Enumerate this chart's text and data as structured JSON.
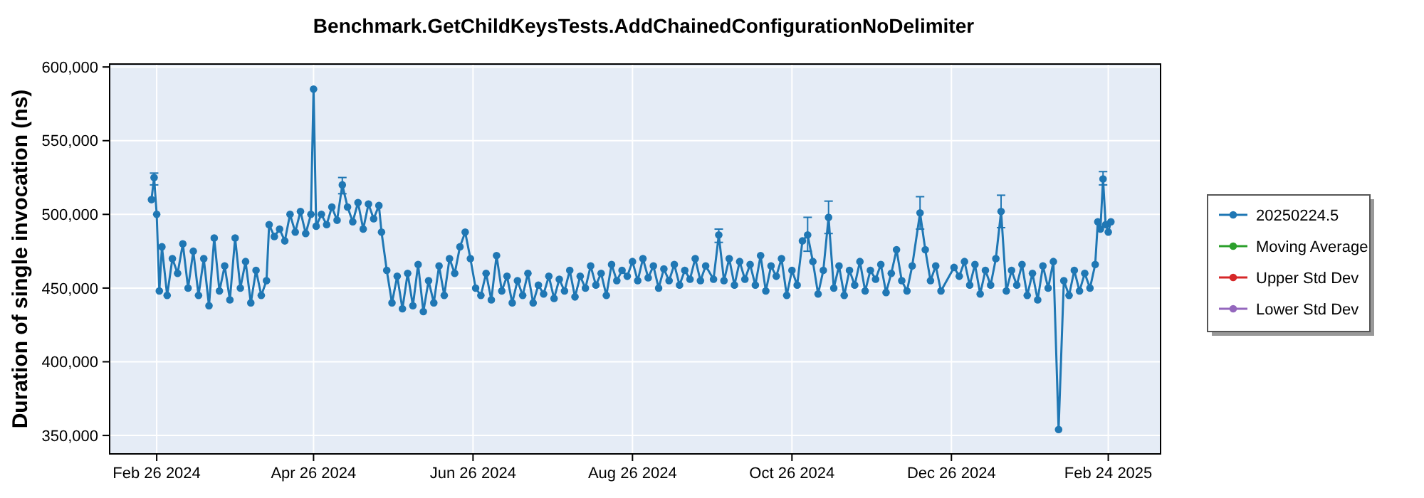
{
  "chart_data": {
    "type": "line",
    "title": "Benchmark.GetChildKeysTests.AddChainedConfigurationNoDelimiter",
    "ylabel": "Duration of single invocation (ns)",
    "xlim": [
      "2024-02-08",
      "2025-03-16"
    ],
    "ylim": [
      337500,
      602000
    ],
    "xticks": [
      {
        "value": "2024-02-26",
        "label": "Feb 26 2024"
      },
      {
        "value": "2024-04-26",
        "label": "Apr 26 2024"
      },
      {
        "value": "2024-06-26",
        "label": "Jun 26 2024"
      },
      {
        "value": "2024-08-26",
        "label": "Aug 26 2024"
      },
      {
        "value": "2024-10-26",
        "label": "Oct 26 2024"
      },
      {
        "value": "2024-12-26",
        "label": "Dec 26 2024"
      },
      {
        "value": "2025-02-24",
        "label": "Feb 24 2025"
      }
    ],
    "yticks": [
      {
        "value": 350000,
        "label": "350,000"
      },
      {
        "value": 400000,
        "label": "400,000"
      },
      {
        "value": 450000,
        "label": "450,000"
      },
      {
        "value": 500000,
        "label": "500,000"
      },
      {
        "value": 550000,
        "label": "550,000"
      },
      {
        "value": 600000,
        "label": "600,000"
      }
    ],
    "grid": true,
    "legend": "right",
    "marker": "circle",
    "line_style": "solid",
    "series": [
      {
        "name": "20250224.5",
        "color": "#1f77b4",
        "x": [
          "2024-02-24",
          "2024-02-25",
          "2024-02-26",
          "2024-02-27",
          "2024-02-28",
          "2024-03-01",
          "2024-03-03",
          "2024-03-05",
          "2024-03-07",
          "2024-03-09",
          "2024-03-11",
          "2024-03-13",
          "2024-03-15",
          "2024-03-17",
          "2024-03-19",
          "2024-03-21",
          "2024-03-23",
          "2024-03-25",
          "2024-03-27",
          "2024-03-29",
          "2024-03-31",
          "2024-04-02",
          "2024-04-04",
          "2024-04-06",
          "2024-04-08",
          "2024-04-09",
          "2024-04-11",
          "2024-04-13",
          "2024-04-15",
          "2024-04-17",
          "2024-04-19",
          "2024-04-21",
          "2024-04-23",
          "2024-04-25",
          "2024-04-26",
          "2024-04-27",
          "2024-04-29",
          "2024-05-01",
          "2024-05-03",
          "2024-05-05",
          "2024-05-07",
          "2024-05-09",
          "2024-05-11",
          "2024-05-13",
          "2024-05-15",
          "2024-05-17",
          "2024-05-19",
          "2024-05-21",
          "2024-05-22",
          "2024-05-24",
          "2024-05-26",
          "2024-05-28",
          "2024-05-30",
          "2024-06-01",
          "2024-06-03",
          "2024-06-05",
          "2024-06-07",
          "2024-06-09",
          "2024-06-11",
          "2024-06-13",
          "2024-06-15",
          "2024-06-17",
          "2024-06-19",
          "2024-06-21",
          "2024-06-23",
          "2024-06-25",
          "2024-06-27",
          "2024-06-29",
          "2024-07-01",
          "2024-07-03",
          "2024-07-05",
          "2024-07-07",
          "2024-07-09",
          "2024-07-11",
          "2024-07-13",
          "2024-07-15",
          "2024-07-17",
          "2024-07-19",
          "2024-07-21",
          "2024-07-23",
          "2024-07-25",
          "2024-07-27",
          "2024-07-29",
          "2024-07-31",
          "2024-08-02",
          "2024-08-04",
          "2024-08-06",
          "2024-08-08",
          "2024-08-10",
          "2024-08-12",
          "2024-08-14",
          "2024-08-16",
          "2024-08-18",
          "2024-08-20",
          "2024-08-22",
          "2024-08-24",
          "2024-08-26",
          "2024-08-28",
          "2024-08-30",
          "2024-09-01",
          "2024-09-03",
          "2024-09-05",
          "2024-09-07",
          "2024-09-09",
          "2024-09-11",
          "2024-09-13",
          "2024-09-15",
          "2024-09-17",
          "2024-09-19",
          "2024-09-21",
          "2024-09-23",
          "2024-09-26",
          "2024-09-28",
          "2024-09-30",
          "2024-10-02",
          "2024-10-04",
          "2024-10-06",
          "2024-10-08",
          "2024-10-10",
          "2024-10-12",
          "2024-10-14",
          "2024-10-16",
          "2024-10-18",
          "2024-10-20",
          "2024-10-22",
          "2024-10-24",
          "2024-10-26",
          "2024-10-28",
          "2024-10-30",
          "2024-11-01",
          "2024-11-03",
          "2024-11-05",
          "2024-11-07",
          "2024-11-09",
          "2024-11-11",
          "2024-11-13",
          "2024-11-15",
          "2024-11-17",
          "2024-11-19",
          "2024-11-21",
          "2024-11-23",
          "2024-11-25",
          "2024-11-27",
          "2024-11-29",
          "2024-12-01",
          "2024-12-03",
          "2024-12-05",
          "2024-12-07",
          "2024-12-09",
          "2024-12-11",
          "2024-12-14",
          "2024-12-16",
          "2024-12-18",
          "2024-12-20",
          "2024-12-22",
          "2024-12-27",
          "2024-12-29",
          "2024-12-31",
          "2025-01-02",
          "2025-01-04",
          "2025-01-06",
          "2025-01-08",
          "2025-01-10",
          "2025-01-12",
          "2025-01-14",
          "2025-01-16",
          "2025-01-18",
          "2025-01-20",
          "2025-01-22",
          "2025-01-24",
          "2025-01-26",
          "2025-01-28",
          "2025-01-30",
          "2025-02-01",
          "2025-02-03",
          "2025-02-05",
          "2025-02-07",
          "2025-02-09",
          "2025-02-11",
          "2025-02-13",
          "2025-02-15",
          "2025-02-17",
          "2025-02-19",
          "2025-02-20",
          "2025-02-21",
          "2025-02-22",
          "2025-02-23",
          "2025-02-24",
          "2025-02-25"
        ],
        "values": [
          510000,
          525000,
          500000,
          448000,
          478000,
          445000,
          470000,
          460000,
          480000,
          450000,
          475000,
          445000,
          470000,
          438000,
          484000,
          448000,
          465000,
          442000,
          484000,
          450000,
          468000,
          440000,
          462000,
          445000,
          455000,
          493000,
          485000,
          490000,
          482000,
          500000,
          488000,
          502000,
          487000,
          500000,
          585000,
          492000,
          500000,
          493000,
          505000,
          496000,
          520000,
          505000,
          495000,
          508000,
          490000,
          507000,
          497000,
          506000,
          488000,
          462000,
          440000,
          458000,
          436000,
          460000,
          438000,
          466000,
          434000,
          455000,
          440000,
          465000,
          445000,
          470000,
          460000,
          478000,
          488000,
          470000,
          450000,
          445000,
          460000,
          442000,
          472000,
          448000,
          458000,
          440000,
          455000,
          445000,
          460000,
          440000,
          452000,
          446000,
          458000,
          443000,
          456000,
          448000,
          462000,
          444000,
          458000,
          450000,
          465000,
          452000,
          460000,
          445000,
          466000,
          455000,
          462000,
          458000,
          468000,
          455000,
          470000,
          457000,
          465000,
          450000,
          463000,
          455000,
          466000,
          452000,
          462000,
          456000,
          470000,
          455000,
          465000,
          456000,
          486000,
          455000,
          470000,
          452000,
          468000,
          456000,
          466000,
          452000,
          472000,
          448000,
          465000,
          458000,
          470000,
          445000,
          462000,
          452000,
          482000,
          486000,
          468000,
          446000,
          462000,
          498000,
          450000,
          465000,
          445000,
          462000,
          452000,
          468000,
          448000,
          462000,
          456000,
          466000,
          447000,
          460000,
          476000,
          455000,
          448000,
          465000,
          501000,
          476000,
          455000,
          465000,
          448000,
          464000,
          458000,
          468000,
          452000,
          466000,
          446000,
          462000,
          452000,
          470000,
          502000,
          448000,
          462000,
          452000,
          466000,
          445000,
          460000,
          442000,
          465000,
          450000,
          468000,
          354000,
          455000,
          445000,
          462000,
          448000,
          460000,
          450000,
          466000,
          495000,
          490000,
          524000,
          493000,
          488000,
          495000
        ],
        "errors": [
          null,
          [
            520000,
            528000
          ],
          null,
          null,
          null,
          null,
          null,
          null,
          null,
          null,
          null,
          null,
          null,
          null,
          null,
          null,
          null,
          null,
          null,
          null,
          null,
          null,
          null,
          null,
          null,
          null,
          null,
          null,
          null,
          null,
          null,
          null,
          null,
          null,
          null,
          null,
          null,
          null,
          null,
          null,
          [
            514000,
            525000
          ],
          null,
          null,
          null,
          null,
          null,
          null,
          null,
          null,
          null,
          null,
          null,
          null,
          null,
          null,
          null,
          null,
          null,
          null,
          null,
          null,
          null,
          null,
          null,
          null,
          null,
          null,
          null,
          null,
          null,
          null,
          null,
          null,
          null,
          null,
          null,
          null,
          null,
          null,
          null,
          null,
          null,
          null,
          null,
          null,
          null,
          null,
          null,
          null,
          null,
          null,
          null,
          null,
          null,
          null,
          null,
          null,
          null,
          null,
          null,
          null,
          null,
          null,
          null,
          null,
          null,
          null,
          null,
          null,
          null,
          null,
          null,
          [
            481000,
            490000
          ],
          null,
          null,
          null,
          null,
          null,
          null,
          null,
          null,
          null,
          null,
          null,
          null,
          null,
          null,
          null,
          null,
          [
            475000,
            498000
          ],
          null,
          null,
          null,
          [
            487000,
            509000
          ],
          null,
          null,
          null,
          null,
          null,
          null,
          null,
          null,
          null,
          null,
          null,
          null,
          null,
          null,
          null,
          null,
          [
            490000,
            512000
          ],
          null,
          null,
          null,
          null,
          null,
          null,
          null,
          null,
          null,
          null,
          null,
          null,
          null,
          [
            491000,
            513000
          ],
          null,
          null,
          null,
          null,
          null,
          null,
          null,
          null,
          null,
          null,
          null,
          null,
          null,
          null,
          null,
          null,
          null,
          null,
          null,
          null,
          [
            520000,
            529000
          ],
          null,
          null,
          null
        ]
      },
      {
        "name": "Moving Average",
        "color": "#2ca02c"
      },
      {
        "name": "Upper Std Dev",
        "color": "#d62728"
      },
      {
        "name": "Lower Std Dev",
        "color": "#9467bd"
      }
    ]
  }
}
